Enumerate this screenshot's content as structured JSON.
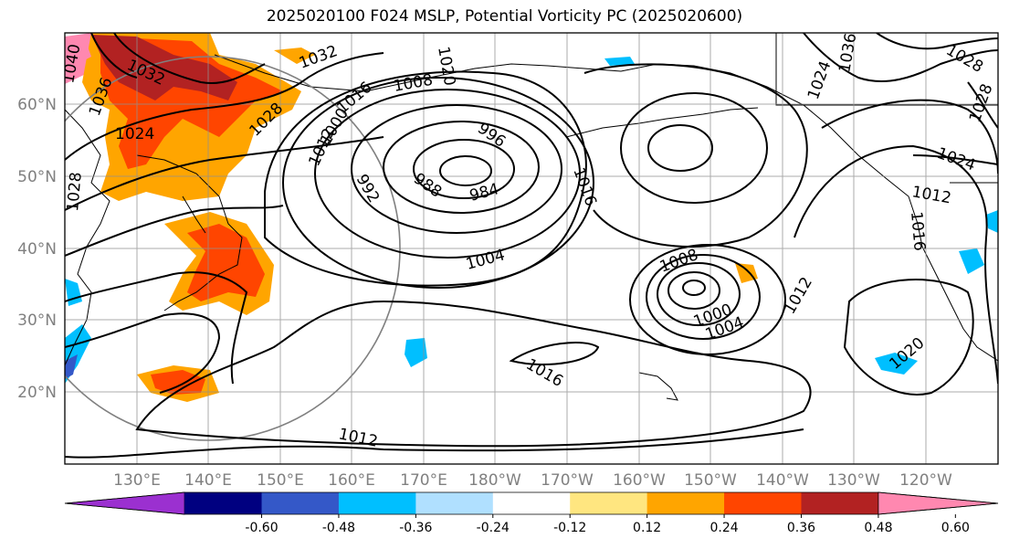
{
  "title": "2025020100 F024 MSLP, Potential Vorticity PC (2025020600)",
  "lat_labels": [
    "60°N",
    "50°N",
    "40°N",
    "30°N",
    "20°N"
  ],
  "lon_labels": [
    "130°E",
    "140°E",
    "150°E",
    "160°E",
    "170°E",
    "180°W",
    "170°W",
    "160°W",
    "150°W",
    "140°W",
    "130°W",
    "120°W"
  ],
  "isobar_labels": [
    {
      "text": "1040"
    },
    {
      "text": "1036"
    },
    {
      "text": "1032"
    },
    {
      "text": "1032"
    },
    {
      "text": "1028"
    },
    {
      "text": "1024"
    },
    {
      "text": "1028"
    },
    {
      "text": "1020"
    },
    {
      "text": "1016"
    },
    {
      "text": "1012"
    },
    {
      "text": "1008"
    },
    {
      "text": "1000"
    },
    {
      "text": "992"
    },
    {
      "text": "988"
    },
    {
      "text": "984"
    },
    {
      "text": "996"
    },
    {
      "text": "1016"
    },
    {
      "text": "1004"
    },
    {
      "text": "1008"
    },
    {
      "text": "1000"
    },
    {
      "text": "1004"
    },
    {
      "text": "1012"
    },
    {
      "text": "1016"
    },
    {
      "text": "1012"
    },
    {
      "text": "1020"
    },
    {
      "text": "1036"
    },
    {
      "text": "1028"
    },
    {
      "text": "1024"
    },
    {
      "text": "1012"
    },
    {
      "text": "1016"
    },
    {
      "text": "1024"
    },
    {
      "text": "1028"
    }
  ],
  "colorbar": {
    "labels": [
      "-0.60",
      "-0.48",
      "-0.36",
      "-0.24",
      "-0.12",
      "0.12",
      "0.24",
      "0.36",
      "0.48",
      "0.60"
    ],
    "colors": [
      "#9b30d0",
      "#000080",
      "#3458c8",
      "#00bfff",
      "#b0e0ff",
      "#ffffff",
      "#ffe680",
      "#ffa500",
      "#ff4500",
      "#b22222",
      "#ff88b0"
    ]
  }
}
